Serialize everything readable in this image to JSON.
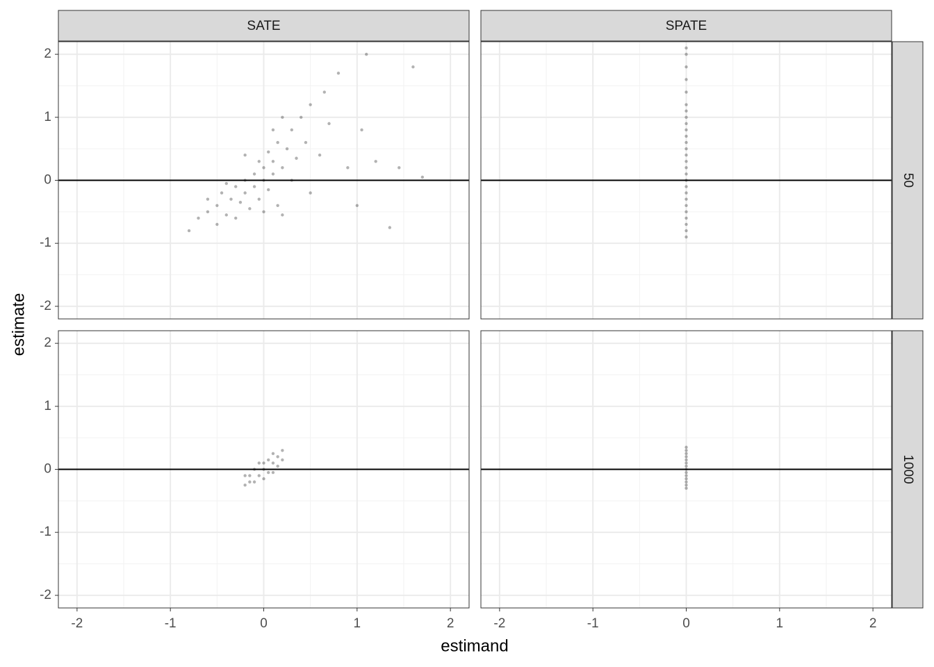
{
  "chart_data": {
    "type": "scatter",
    "xlabel": "estimand",
    "ylabel": "estimate",
    "facet_cols": [
      "SATE",
      "SPATE"
    ],
    "facet_rows": [
      "50",
      "1000"
    ],
    "xlim": [
      -2.2,
      2.2
    ],
    "ylim": [
      -2.2,
      2.2
    ],
    "xticks": [
      -2,
      -1,
      0,
      1,
      2
    ],
    "yticks": [
      -2,
      -1,
      0,
      1,
      2
    ],
    "minor_breaks": [
      -1.5,
      -0.5,
      0.5,
      1.5
    ],
    "hline": 0,
    "grid": true,
    "color": "#000000",
    "alpha": 0.3,
    "panels": [
      {
        "x": [
          -0.8,
          -0.7,
          -0.6,
          -0.5,
          -0.5,
          -0.45,
          -0.4,
          -0.35,
          -0.3,
          -0.3,
          -0.25,
          -0.2,
          -0.2,
          -0.15,
          -0.1,
          -0.1,
          -0.05,
          -0.05,
          0,
          0,
          0.05,
          0.05,
          0.1,
          0.1,
          0.15,
          0.15,
          0.2,
          0.25,
          0.3,
          0.3,
          0.35,
          0.4,
          0.45,
          0.5,
          0.5,
          0.6,
          0.65,
          0.7,
          0.8,
          0.9,
          1.0,
          1.05,
          1.1,
          1.2,
          1.35,
          1.45,
          1.6,
          1.7,
          -0.2,
          -0.4,
          0,
          0.2,
          -0.6,
          0.1,
          0.2
        ],
        "y": [
          -0.8,
          -0.6,
          -0.5,
          -0.7,
          -0.4,
          -0.2,
          -0.55,
          -0.3,
          -0.1,
          -0.6,
          -0.35,
          0,
          -0.2,
          -0.45,
          0.1,
          -0.1,
          0.3,
          -0.3,
          0,
          0.2,
          -0.15,
          0.45,
          0.1,
          0.3,
          -0.4,
          0.6,
          0.2,
          0.5,
          0,
          0.8,
          0.35,
          1.0,
          0.6,
          1.2,
          -0.2,
          0.4,
          1.4,
          0.9,
          1.7,
          0.2,
          -0.4,
          0.8,
          2.0,
          0.3,
          -0.75,
          0.2,
          1.8,
          0.05,
          0.4,
          -0.05,
          -0.5,
          -0.55,
          -0.3,
          0.8,
          1.0
        ]
      },
      {
        "x": [
          0,
          0,
          0,
          0,
          0,
          0,
          0,
          0,
          0,
          0,
          0,
          0,
          0,
          0,
          0,
          0,
          0,
          0,
          0,
          0,
          0,
          0,
          0,
          0,
          0,
          0,
          0
        ],
        "y": [
          -0.9,
          -0.8,
          -0.7,
          -0.6,
          -0.5,
          -0.4,
          -0.3,
          -0.2,
          -0.1,
          0,
          0.1,
          0.2,
          0.3,
          0.4,
          0.5,
          0.6,
          0.7,
          0.8,
          0.9,
          1.0,
          1.1,
          1.2,
          1.4,
          1.6,
          1.8,
          2.0,
          2.1
        ]
      },
      {
        "x": [
          -0.2,
          -0.15,
          -0.1,
          -0.1,
          -0.05,
          0,
          0,
          0.05,
          0.05,
          0.1,
          0.1,
          0.15,
          0.2,
          -0.05,
          0,
          -0.15,
          0.15,
          0.1,
          -0.2,
          0.2
        ],
        "y": [
          -0.25,
          -0.1,
          -0.2,
          0,
          -0.1,
          0,
          0.1,
          -0.05,
          0.15,
          0.1,
          0.25,
          0.2,
          0.3,
          0.1,
          -0.15,
          -0.2,
          0.05,
          -0.05,
          -0.1,
          0.15
        ]
      },
      {
        "x": [
          0,
          0,
          0,
          0,
          0,
          0,
          0,
          0,
          0,
          0,
          0,
          0,
          0,
          0
        ],
        "y": [
          -0.3,
          -0.25,
          -0.2,
          -0.15,
          -0.1,
          -0.05,
          0,
          0.05,
          0.1,
          0.15,
          0.2,
          0.25,
          0.3,
          0.35
        ]
      }
    ]
  }
}
